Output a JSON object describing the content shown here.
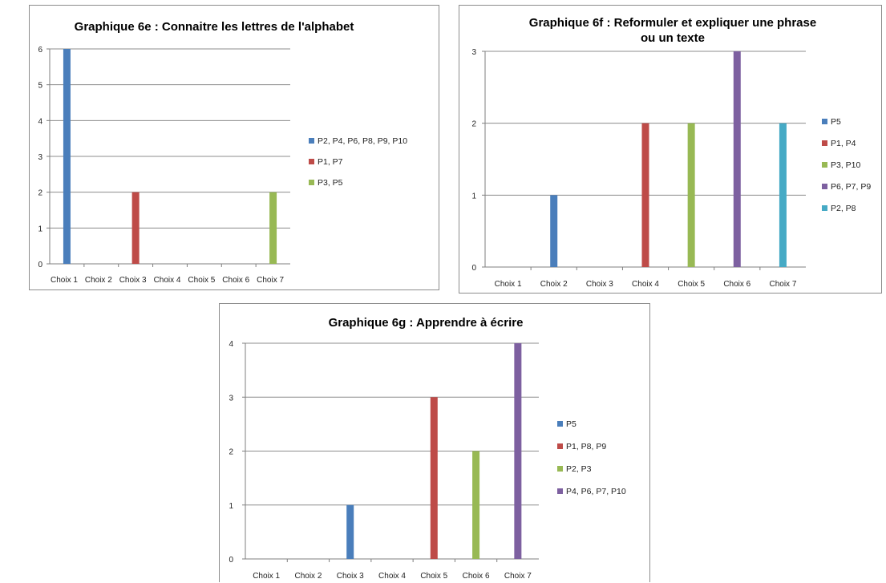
{
  "chart_data": [
    {
      "id": "6e",
      "type": "bar",
      "title": "Graphique 6e : Connaitre les lettres de l'alphabet",
      "categories": [
        "Choix 1",
        "Choix 2",
        "Choix 3",
        "Choix 4",
        "Choix 5",
        "Choix 6",
        "Choix 7"
      ],
      "ylim": [
        0,
        6
      ],
      "yticks": [
        0,
        1,
        2,
        3,
        4,
        5,
        6
      ],
      "grid": true,
      "legend_position": "right",
      "series": [
        {
          "name": "P2, P4, P6, P8, P9, P10",
          "color": "#4a7ebb",
          "values": [
            6,
            0,
            0,
            0,
            0,
            0,
            0
          ]
        },
        {
          "name": "P1, P7",
          "color": "#be4b48",
          "values": [
            0,
            0,
            2,
            0,
            0,
            0,
            0
          ]
        },
        {
          "name": "P3, P5",
          "color": "#98b954",
          "values": [
            0,
            0,
            0,
            0,
            0,
            0,
            2
          ]
        }
      ]
    },
    {
      "id": "6f",
      "type": "bar",
      "title": "Graphique 6f : Reformuler et expliquer une phrase ou un texte",
      "categories": [
        "Choix 1",
        "Choix 2",
        "Choix 3",
        "Choix 4",
        "Choix 5",
        "Choix 6",
        "Choix 7"
      ],
      "ylim": [
        0,
        3
      ],
      "yticks": [
        0,
        1,
        2,
        3
      ],
      "grid": true,
      "legend_position": "right",
      "series": [
        {
          "name": "P5",
          "color": "#4a7ebb",
          "values": [
            0,
            1,
            0,
            0,
            0,
            0,
            0
          ]
        },
        {
          "name": "P1, P4",
          "color": "#be4b48",
          "values": [
            0,
            0,
            0,
            2,
            0,
            0,
            0
          ]
        },
        {
          "name": "P3, P10",
          "color": "#98b954",
          "values": [
            0,
            0,
            0,
            0,
            2,
            0,
            0
          ]
        },
        {
          "name": "P6, P7, P9",
          "color": "#7d60a0",
          "values": [
            0,
            0,
            0,
            0,
            0,
            3,
            0
          ]
        },
        {
          "name": "P2, P8",
          "color": "#46aac5",
          "values": [
            0,
            0,
            0,
            0,
            0,
            0,
            2
          ]
        }
      ]
    },
    {
      "id": "6g",
      "type": "bar",
      "title": "Graphique 6g : Apprendre à écrire",
      "categories": [
        "Choix 1",
        "Choix 2",
        "Choix 3",
        "Choix 4",
        "Choix 5",
        "Choix 6",
        "Choix 7"
      ],
      "ylim": [
        0,
        4
      ],
      "yticks": [
        0,
        1,
        2,
        3,
        4
      ],
      "grid": true,
      "legend_position": "right",
      "series": [
        {
          "name": "P5",
          "color": "#4a7ebb",
          "values": [
            0,
            0,
            1,
            0,
            0,
            0,
            0
          ]
        },
        {
          "name": "P1, P8, P9",
          "color": "#be4b48",
          "values": [
            0,
            0,
            0,
            0,
            3,
            0,
            0
          ]
        },
        {
          "name": "P2, P3",
          "color": "#98b954",
          "values": [
            0,
            0,
            0,
            0,
            0,
            2,
            0
          ]
        },
        {
          "name": "P4, P6, P7, P10",
          "color": "#7d60a0",
          "values": [
            0,
            0,
            0,
            0,
            0,
            0,
            4
          ]
        }
      ]
    }
  ]
}
